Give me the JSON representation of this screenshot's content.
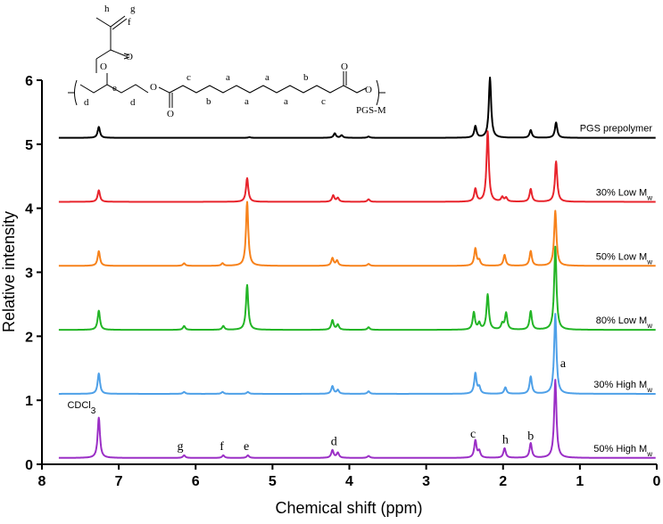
{
  "chart_data": {
    "type": "line",
    "xlabel": "Chemical shift (ppm)",
    "ylabel": "Relative intensity",
    "xlim": [
      8,
      0
    ],
    "ylim": [
      0,
      6
    ],
    "x_reversed": true,
    "x_ticks": [
      8,
      7,
      6,
      5,
      4,
      3,
      2,
      1,
      0
    ],
    "y_ticks": [
      0,
      1,
      2,
      3,
      4,
      5,
      6
    ],
    "x_tick_labels": [
      "8",
      "7",
      "6",
      "5",
      "4",
      "3",
      "2",
      "1",
      "0"
    ],
    "y_tick_labels": [
      "0",
      "1",
      "2",
      "3",
      "4",
      "5",
      "6"
    ],
    "series": [
      {
        "name": "PGS prepolymer",
        "label_main": "PGS prepolymer",
        "label_sub": "",
        "color": "#000000",
        "baseline": 5.1,
        "peaks": [
          [
            7.26,
            0.17
          ],
          [
            5.3,
            0.01
          ],
          [
            4.19,
            0.07
          ],
          [
            4.1,
            0.04
          ],
          [
            3.75,
            0.02
          ],
          [
            2.36,
            0.18
          ],
          [
            2.17,
            0.94
          ],
          [
            1.64,
            0.12
          ],
          [
            1.31,
            0.24
          ]
        ]
      },
      {
        "name": "30% Low Mw",
        "label_main": "30% Low M",
        "label_sub": "w",
        "color": "#e8242c",
        "baseline": 4.1,
        "peaks": [
          [
            7.26,
            0.18
          ],
          [
            5.33,
            0.37
          ],
          [
            4.21,
            0.1
          ],
          [
            4.15,
            0.06
          ],
          [
            3.75,
            0.04
          ],
          [
            2.36,
            0.2
          ],
          [
            2.2,
            1.1
          ],
          [
            2.01,
            0.07
          ],
          [
            1.96,
            0.06
          ],
          [
            1.64,
            0.2
          ],
          [
            1.31,
            0.63
          ]
        ]
      },
      {
        "name": "50% Low Mw",
        "label_main": "50% Low M",
        "label_sub": "w",
        "color": "#f7821b",
        "baseline": 3.1,
        "peaks": [
          [
            7.26,
            0.23
          ],
          [
            6.15,
            0.04
          ],
          [
            5.65,
            0.04
          ],
          [
            5.33,
            1.0
          ],
          [
            4.22,
            0.12
          ],
          [
            4.16,
            0.08
          ],
          [
            3.75,
            0.03
          ],
          [
            2.36,
            0.27
          ],
          [
            2.31,
            0.08
          ],
          [
            1.98,
            0.17
          ],
          [
            1.64,
            0.23
          ],
          [
            1.32,
            0.86
          ]
        ]
      },
      {
        "name": "80% Low Mw",
        "label_main": "80% Low M",
        "label_sub": "w",
        "color": "#23b526",
        "baseline": 2.1,
        "peaks": [
          [
            7.26,
            0.3
          ],
          [
            6.15,
            0.06
          ],
          [
            5.64,
            0.06
          ],
          [
            5.33,
            0.7
          ],
          [
            4.22,
            0.15
          ],
          [
            4.15,
            0.08
          ],
          [
            3.75,
            0.04
          ],
          [
            2.38,
            0.27
          ],
          [
            2.31,
            0.1
          ],
          [
            2.2,
            0.55
          ],
          [
            2.01,
            0.09
          ],
          [
            1.96,
            0.26
          ],
          [
            1.64,
            0.29
          ],
          [
            1.32,
            1.3
          ]
        ]
      },
      {
        "name": "30% High Mw",
        "label_main": "30% High M",
        "label_sub": "w",
        "color": "#4ea0e8",
        "baseline": 1.1,
        "peaks": [
          [
            7.26,
            0.32
          ],
          [
            6.15,
            0.03
          ],
          [
            5.65,
            0.03
          ],
          [
            5.32,
            0.03
          ],
          [
            4.22,
            0.12
          ],
          [
            4.15,
            0.06
          ],
          [
            3.75,
            0.04
          ],
          [
            2.36,
            0.32
          ],
          [
            2.31,
            0.1
          ],
          [
            1.97,
            0.1
          ],
          [
            1.64,
            0.27
          ],
          [
            1.32,
            1.25
          ]
        ]
      },
      {
        "name": "50% High Mw",
        "label_main": "50% High M",
        "label_sub": "w",
        "color": "#9b2fc6",
        "baseline": 0.1,
        "peaks": [
          [
            7.26,
            0.63
          ],
          [
            6.15,
            0.04
          ],
          [
            5.64,
            0.04
          ],
          [
            5.32,
            0.04
          ],
          [
            4.22,
            0.12
          ],
          [
            4.15,
            0.08
          ],
          [
            3.75,
            0.03
          ],
          [
            2.36,
            0.27
          ],
          [
            2.31,
            0.1
          ],
          [
            1.98,
            0.15
          ],
          [
            1.64,
            0.23
          ],
          [
            1.32,
            1.22
          ]
        ]
      }
    ],
    "annotations": [
      {
        "text": "CDCl",
        "sub": "3",
        "x": 7.3,
        "y": 0.88
      },
      {
        "text": "g",
        "x": 6.2,
        "y": 0.22
      },
      {
        "text": "f",
        "x": 5.66,
        "y": 0.22
      },
      {
        "text": "e",
        "x": 5.34,
        "y": 0.22
      },
      {
        "text": "d",
        "x": 4.2,
        "y": 0.3
      },
      {
        "text": "c",
        "x": 2.39,
        "y": 0.42
      },
      {
        "text": "h",
        "x": 1.97,
        "y": 0.33
      },
      {
        "text": "b",
        "x": 1.64,
        "y": 0.38
      },
      {
        "text": "a",
        "x": 1.22,
        "y": 1.52
      }
    ]
  },
  "structure": {
    "labels": {
      "h": "h",
      "g": "g",
      "f": "f",
      "e": "e",
      "d1": "d",
      "d2": "d",
      "c1": "c",
      "b1": "b",
      "a1": "a",
      "a2": "a",
      "a3": "a",
      "a4": "a",
      "b2": "b",
      "c2": "c"
    },
    "name": "PGS-M"
  }
}
